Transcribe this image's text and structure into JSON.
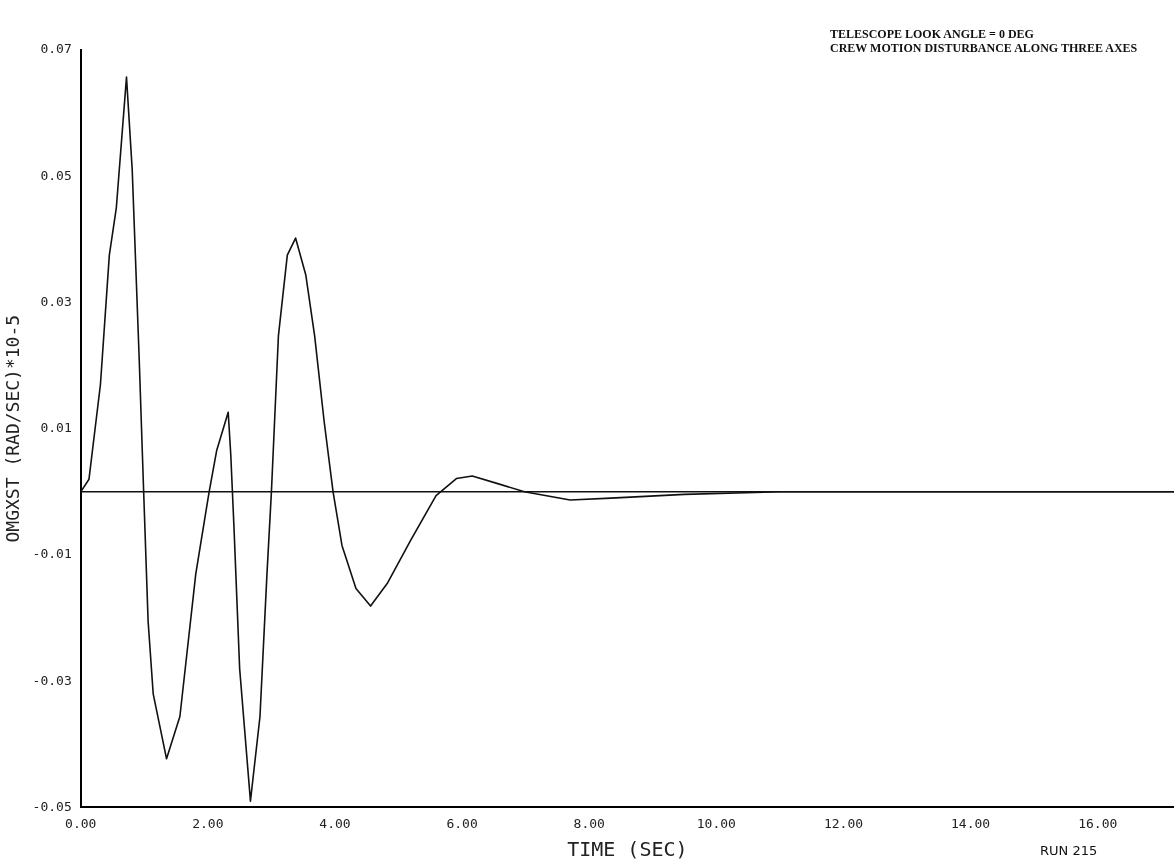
{
  "chart_data": {
    "type": "line",
    "xlabel": "TIME (SEC)",
    "ylabel": "OMGXST (RAD/SEC)*10-5",
    "annotations": [
      "TELESCOPE LOOK ANGLE = 0 DEG",
      "CREW MOTION DISTURBANCE ALONG THREE AXES",
      "RUN 215"
    ],
    "series": [
      {
        "color": "#111111",
        "x": [
          0,
          0.13,
          0.31,
          0.45,
          0.56,
          0.72,
          0.81,
          0.92,
          0.99,
          1.06,
          1.14,
          1.35,
          1.56,
          1.81,
          2.02,
          2.14,
          2.32,
          2.36,
          2.41,
          2.5,
          2.67,
          2.82,
          2.93,
          3.0,
          3.11,
          3.25,
          3.38,
          3.54,
          3.68,
          3.83,
          3.97,
          4.11,
          4.33,
          4.56,
          4.83,
          5.19,
          5.59,
          5.91,
          6.16,
          6.56,
          6.98,
          7.7,
          8.34,
          9.5,
          11,
          17.2
        ],
        "values": [
          0,
          0.002,
          0.017,
          0.0375,
          0.045,
          0.0657,
          0.051,
          0.021,
          0,
          -0.0205,
          -0.032,
          -0.0423,
          -0.0356,
          -0.013,
          0,
          0.0066,
          0.0126,
          0.006,
          -0.0054,
          -0.028,
          -0.049,
          -0.0356,
          -0.013,
          0,
          0.0247,
          0.0375,
          0.0402,
          0.0344,
          0.0247,
          0.0111,
          0,
          -0.0085,
          -0.0153,
          -0.0181,
          -0.0144,
          -0.0077,
          -0.0006,
          0.0021,
          0.0025,
          0.0013,
          0,
          -0.0013,
          -0.001,
          -0.0004,
          0,
          0
        ]
      }
    ],
    "xlim": [
      0,
      17.2
    ],
    "xticks": [
      {
        "value": 0,
        "label": "0.00"
      },
      {
        "value": 2,
        "label": "2.00"
      },
      {
        "value": 4,
        "label": "4.00"
      },
      {
        "value": 6,
        "label": "6.00"
      },
      {
        "value": 8,
        "label": "8.00"
      },
      {
        "value": 10,
        "label": "10.00"
      },
      {
        "value": 12,
        "label": "12.00"
      },
      {
        "value": 14,
        "label": "14.00"
      },
      {
        "value": 16,
        "label": "16.00"
      }
    ],
    "ylim": [
      -0.05,
      0.07
    ],
    "yticks": [
      {
        "value": 0.07,
        "label": "0.07"
      },
      {
        "value": 0.05,
        "label": "0.05"
      },
      {
        "value": 0.03,
        "label": "0.03"
      },
      {
        "value": 0.01,
        "label": "0.01"
      },
      {
        "value": -0.01,
        "label": "-0.01"
      },
      {
        "value": -0.03,
        "label": "-0.03"
      },
      {
        "value": -0.05,
        "label": "-0.05"
      }
    ],
    "ref_lines": [
      {
        "axis": "y",
        "value": 0,
        "color": "#111111"
      }
    ],
    "grid": false,
    "legend": false,
    "marker": "none",
    "line_style": "solid"
  }
}
